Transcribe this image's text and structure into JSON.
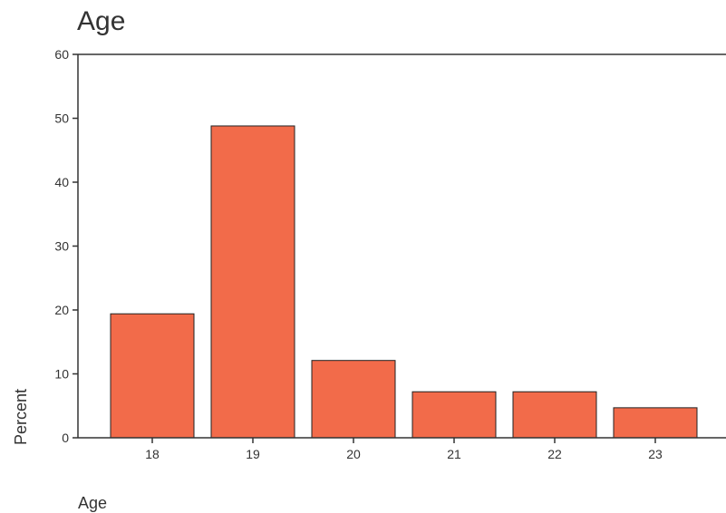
{
  "chart_data": {
    "type": "bar",
    "title": "Age",
    "xlabel": "Age",
    "ylabel": "Percent",
    "categories": [
      "18",
      "19",
      "20",
      "21",
      "22",
      "23"
    ],
    "values": [
      19.4,
      48.8,
      12.1,
      7.2,
      7.2,
      4.7
    ],
    "ylim": [
      0,
      60
    ],
    "yticks": [
      0,
      10,
      20,
      30,
      40,
      50,
      60
    ],
    "grid": false,
    "bar_color": "#f26b4a",
    "bar_edge_color": "#222222"
  }
}
